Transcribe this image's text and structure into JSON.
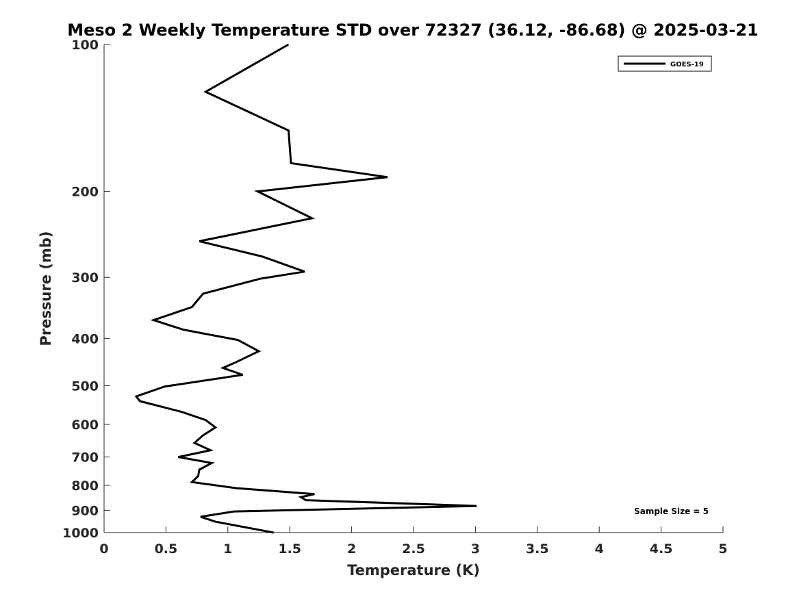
{
  "chart_data": {
    "type": "line",
    "title": "Meso 2 Weekly Temperature STD over 72327 (36.12, -86.68) @ 2025-03-21",
    "xlabel": "Temperature (K)",
    "ylabel": "Pressure (mb)",
    "xlim": [
      0,
      5
    ],
    "ylim": [
      100,
      1000
    ],
    "y_scale": "log",
    "y_reversed": true,
    "x_ticks": [
      "0",
      "0.5",
      "1",
      "1.5",
      "2",
      "2.5",
      "3",
      "3.5",
      "4",
      "4.5",
      "5"
    ],
    "y_ticks": [
      "100",
      "200",
      "300",
      "400",
      "500",
      "600",
      "700",
      "800",
      "900",
      "1000"
    ],
    "grid": false,
    "legend_position": "top-right",
    "annotation": "Sample Size = 5",
    "series": [
      {
        "name": "GOES-19",
        "color": "#000000",
        "points": [
          [
            1.49,
            100
          ],
          [
            0.82,
            125
          ],
          [
            1.49,
            150
          ],
          [
            1.51,
            175
          ],
          [
            2.29,
            187
          ],
          [
            1.24,
            200
          ],
          [
            1.68,
            227
          ],
          [
            0.77,
            253
          ],
          [
            1.28,
            272
          ],
          [
            1.62,
            292
          ],
          [
            1.26,
            302
          ],
          [
            0.8,
            324
          ],
          [
            0.71,
            345
          ],
          [
            0.4,
            367
          ],
          [
            0.64,
            384
          ],
          [
            1.08,
            403
          ],
          [
            1.25,
            425
          ],
          [
            1.07,
            447
          ],
          [
            0.96,
            460
          ],
          [
            1.12,
            475
          ],
          [
            0.49,
            502
          ],
          [
            0.26,
            526
          ],
          [
            0.29,
            538
          ],
          [
            0.63,
            566
          ],
          [
            0.82,
            588
          ],
          [
            0.9,
            609
          ],
          [
            0.8,
            632
          ],
          [
            0.73,
            655
          ],
          [
            0.86,
            678
          ],
          [
            0.6,
            700
          ],
          [
            0.87,
            720
          ],
          [
            0.77,
            743
          ],
          [
            0.76,
            766
          ],
          [
            0.71,
            788
          ],
          [
            1.07,
            811
          ],
          [
            1.7,
            834
          ],
          [
            1.59,
            846
          ],
          [
            1.63,
            858
          ],
          [
            3.01,
            882
          ],
          [
            1.05,
            905
          ],
          [
            0.78,
            928
          ],
          [
            0.9,
            950
          ],
          [
            1.37,
            1000
          ]
        ]
      }
    ]
  }
}
